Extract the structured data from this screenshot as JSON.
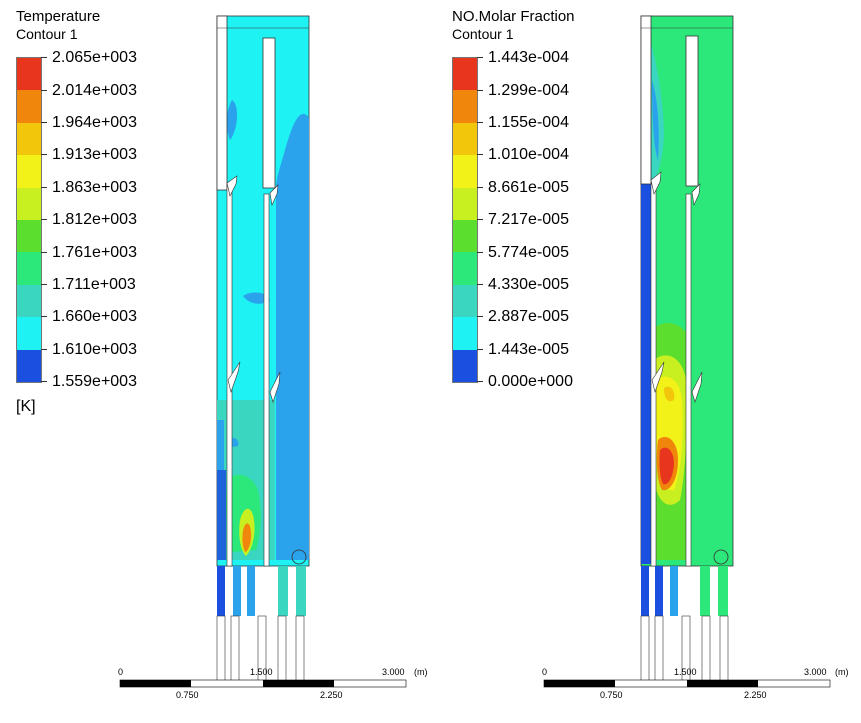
{
  "left": {
    "title": "Temperature",
    "subtitle": "Contour 1",
    "unit": "[K]",
    "levels": [
      "2.065e+003",
      "2.014e+003",
      "1.964e+003",
      "1.913e+003",
      "1.863e+003",
      "1.812e+003",
      "1.761e+003",
      "1.711e+003",
      "1.660e+003",
      "1.610e+003",
      "1.559e+003"
    ],
    "scale": {
      "start": "0",
      "mid": "1.500",
      "end": "3.000",
      "unit": "(m)",
      "q1": "0.750",
      "q3": "2.250"
    }
  },
  "right": {
    "title": "NO.Molar Fraction",
    "subtitle": "Contour 1",
    "levels": [
      "1.443e-004",
      "1.299e-004",
      "1.155e-004",
      "1.010e-004",
      "8.661e-005",
      "7.217e-005",
      "5.774e-005",
      "4.330e-005",
      "2.887e-005",
      "1.443e-005",
      "0.000e+000"
    ],
    "scale": {
      "start": "0",
      "mid": "1.500",
      "end": "3.000",
      "unit": "(m)",
      "q1": "0.750",
      "q3": "2.250"
    }
  },
  "colormap": [
    "#e8361e",
    "#f0860b",
    "#f2c60a",
    "#f2f219",
    "#c8f020",
    "#5bde2e",
    "#2ce87a",
    "#3ad6c0",
    "#1ff2f2",
    "#2aa3ec",
    "#1a4fe0"
  ]
}
